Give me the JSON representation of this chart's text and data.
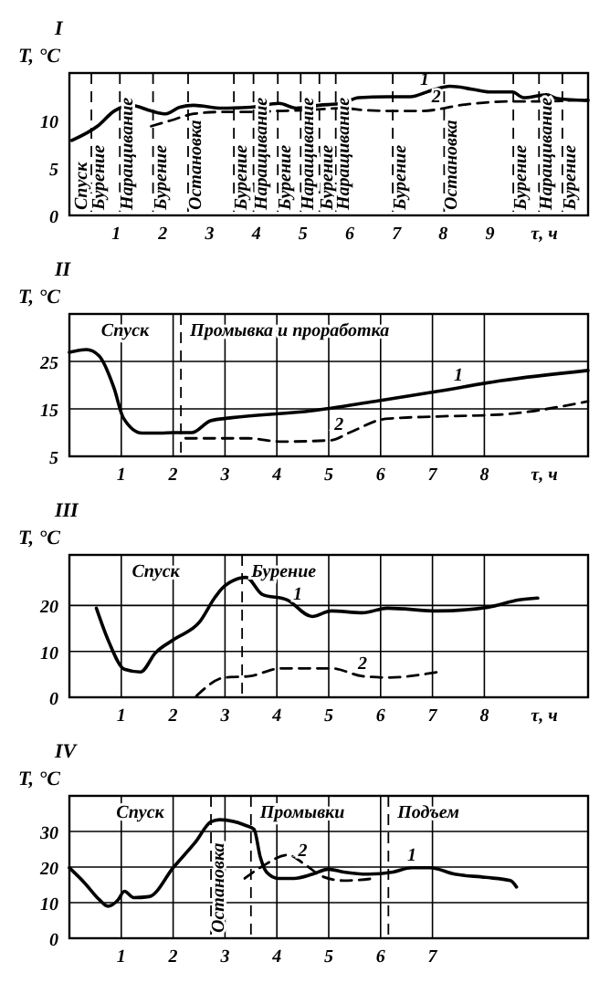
{
  "chart_data": [
    {
      "type": "line",
      "title": "I",
      "ylabel": "T, °C",
      "xlabel": "τ, ч",
      "xlim": [
        0,
        11.1
      ],
      "ylim": [
        0,
        15
      ],
      "xticks": [
        1,
        2,
        3,
        4,
        5,
        6,
        7,
        8,
        9
      ],
      "yticks": [
        0,
        5,
        10
      ],
      "series": [
        {
          "color": "#000000",
          "line_style": "solid",
          "x": [
            0.05,
            0.6,
            0.96,
            1.32,
            1.75,
            2.06,
            2.36,
            2.66,
            3.27,
            3.88,
            4.49,
            4.85,
            5.34,
            5.83,
            6.19,
            6.8,
            7.29,
            7.77,
            8.14,
            8.62,
            8.99,
            9.48,
            9.72,
            10.21,
            10.45,
            11.1
          ],
          "values": [
            7.9,
            9.4,
            11.0,
            11.6,
            11.0,
            10.7,
            11.4,
            11.6,
            11.3,
            11.4,
            11.8,
            11.3,
            11.6,
            11.8,
            12.4,
            12.5,
            12.5,
            13.2,
            13.6,
            13.3,
            13.0,
            13.0,
            12.4,
            12.7,
            12.3,
            12.1
          ]
        },
        {
          "color": "#000000",
          "line_style": "dashed",
          "x": [
            1.75,
            2.17,
            2.66,
            3.27,
            3.88,
            4.49,
            5.1,
            5.83,
            6.31,
            6.92,
            7.53,
            8.5,
            9.36,
            9.97,
            11.1
          ],
          "values": [
            9.4,
            10.0,
            10.7,
            10.9,
            10.9,
            11.0,
            11.1,
            11.3,
            11.1,
            11.0,
            11.0,
            11.7,
            12.0,
            12.0,
            12.2
          ]
        }
      ],
      "ref_lines": [
        {
          "axis": "x",
          "value": 0.47,
          "label": "Бурение",
          "line_style": "dashed"
        },
        {
          "axis": "x",
          "value": 1.08,
          "label": "Наращивание",
          "line_style": "dashed"
        },
        {
          "axis": "x",
          "value": 1.79,
          "label": "Бурение",
          "line_style": "dashed"
        },
        {
          "axis": "x",
          "value": 2.54,
          "label": "Остановка",
          "line_style": "dashed"
        },
        {
          "axis": "x",
          "value": 3.52,
          "label": "Бурение",
          "line_style": "dashed"
        },
        {
          "axis": "x",
          "value": 3.94,
          "label": "Наращивание",
          "line_style": "dashed"
        },
        {
          "axis": "x",
          "value": 4.46,
          "label": "Бурение",
          "line_style": "dashed"
        },
        {
          "axis": "x",
          "value": 4.95,
          "label": "Наращивание",
          "line_style": "dashed"
        },
        {
          "axis": "x",
          "value": 5.35,
          "label": "Бурение",
          "line_style": "dashed"
        },
        {
          "axis": "x",
          "value": 5.7,
          "label": "Наращивание",
          "line_style": "dashed"
        },
        {
          "axis": "x",
          "value": 6.92,
          "label": "Бурение",
          "line_style": "dashed"
        },
        {
          "axis": "x",
          "value": 8.02,
          "label": "Остановка",
          "line_style": "dashed"
        },
        {
          "axis": "x",
          "value": 9.5,
          "label": "Бурение",
          "line_style": "dashed"
        },
        {
          "axis": "x",
          "value": 10.05,
          "label": "Наращивание",
          "line_style": "dashed"
        },
        {
          "axis": "x",
          "value": 10.55,
          "label": "Бурение",
          "line_style": "dashed"
        }
      ],
      "annotations": [
        "Спуск",
        {
          "text": "1",
          "x": 7.6,
          "y": 13.0
        },
        {
          "text": "2",
          "x": 7.85,
          "y": 11.2
        }
      ]
    },
    {
      "type": "line",
      "title": "II",
      "ylabel": "T, °C",
      "xlabel": "τ, ч",
      "xlim": [
        0,
        10
      ],
      "ylim": [
        5,
        35
      ],
      "xticks": [
        1,
        2,
        3,
        4,
        5,
        6,
        7,
        8
      ],
      "yticks": [
        5,
        15,
        25
      ],
      "grid": true,
      "series": [
        {
          "color": "#000000",
          "line_style": "solid",
          "x": [
            0,
            0.33,
            0.57,
            0.86,
            1.04,
            1.4,
            1.76,
            2.0,
            2.36,
            2.72,
            3.1,
            4.68,
            5.89,
            7.1,
            8.3,
            10
          ],
          "values": [
            26.9,
            27.5,
            26.2,
            19.4,
            13.1,
            9.9,
            9.9,
            10,
            10,
            12.5,
            13.1,
            14.6,
            16.6,
            18.7,
            20.9,
            23.1
          ]
        },
        {
          "color": "#000000",
          "line_style": "dashed",
          "x": [
            2.24,
            3.45,
            4.08,
            5.05,
            5.4,
            6.1,
            7.1,
            8.3,
            10
          ],
          "values": [
            8.8,
            8.8,
            8.1,
            8.4,
            10,
            12.9,
            13.4,
            13.8,
            16.6
          ]
        }
      ],
      "ref_lines": [
        {
          "axis": "x",
          "value": 2.15,
          "label": "Промывка и проработка",
          "line_style": "dashed"
        }
      ],
      "annotations": [
        "Спуск",
        {
          "text": "1",
          "x": 7.5,
          "y": 19.4
        },
        {
          "text": "2",
          "x": 5.2,
          "y": 9.1
        }
      ]
    },
    {
      "type": "line",
      "title": "III",
      "ylabel": "T, °C",
      "xlabel": "τ, ч",
      "xlim": [
        0,
        10
      ],
      "ylim": [
        0,
        31
      ],
      "xticks": [
        1,
        2,
        3,
        4,
        5,
        6,
        7,
        8
      ],
      "yticks": [
        0,
        10,
        20
      ],
      "grid": true,
      "series": [
        {
          "color": "#000000",
          "line_style": "solid",
          "x": [
            0.52,
            0.76,
            1.06,
            1.37,
            1.66,
            2.03,
            2.51,
            2.81,
            2.99,
            3.41,
            3.72,
            4.2,
            4.68,
            5.05,
            5.65,
            6.13,
            7.1,
            8.07,
            8.67,
            9.03
          ],
          "values": [
            19.4,
            12.1,
            6.1,
            5.5,
            9.7,
            12.7,
            16.4,
            21.8,
            24.2,
            26.1,
            22.4,
            21.2,
            17.6,
            18.8,
            18.4,
            19.4,
            18.8,
            19.6,
            21.2,
            21.6
          ]
        },
        {
          "color": "#000000",
          "line_style": "dashed",
          "x": [
            2.45,
            2.99,
            3.47,
            4.08,
            5.05,
            5.65,
            6.13,
            7.1
          ],
          "values": [
            0.3,
            4.3,
            4.6,
            6.3,
            6.3,
            4.6,
            4.3,
            5.5
          ]
        }
      ],
      "ref_lines": [
        {
          "axis": "x",
          "value": 3.33,
          "label": "Бурение",
          "line_style": "dashed"
        }
      ],
      "annotations": [
        "Спуск",
        {
          "text": "1",
          "x": 4.4,
          "y": 19.7
        },
        {
          "text": "2",
          "x": 5.65,
          "y": 4.6
        }
      ]
    },
    {
      "type": "line",
      "title": "IV",
      "ylabel": "T, °C",
      "xlim": [
        0,
        10
      ],
      "ylim": [
        0,
        40
      ],
      "xticks": [
        1,
        2,
        3,
        4,
        5,
        6,
        7
      ],
      "yticks": [
        0,
        10,
        20,
        30
      ],
      "grid": true,
      "series": [
        {
          "color": "#000000",
          "line_style": "solid",
          "x": [
            0,
            0.29,
            0.58,
            0.74,
            0.94,
            1.06,
            1.24,
            1.54,
            2.01,
            2.43,
            2.73,
            2.9,
            3.38,
            3.56,
            3.68,
            3.8,
            4.03,
            4.33,
            4.69,
            4.99,
            5.29,
            5.76,
            6.24,
            6.6,
            6.95,
            7.43,
            8.02,
            8.5,
            8.62
          ],
          "values": [
            19.8,
            15.6,
            10.8,
            9.0,
            10.8,
            13.2,
            11.4,
            11.7,
            20.0,
            27.0,
            32.7,
            33.3,
            31.8,
            30.6,
            22.8,
            18.6,
            16.8,
            16.8,
            18.0,
            19.4,
            18.6,
            18.0,
            18.6,
            19.8,
            19.8,
            18.0,
            17.1,
            16.2,
            14.4
          ]
        },
        {
          "color": "#000000",
          "line_style": "dashed",
          "x": [
            3.38,
            3.74,
            4.21,
            4.57,
            4.87,
            5.29,
            5.88
          ],
          "values": [
            16.8,
            20.4,
            23.4,
            20.4,
            17.4,
            16.2,
            16.8
          ]
        }
      ],
      "ref_lines": [
        {
          "axis": "x",
          "value": 2.73,
          "label": "Остановка",
          "line_style": "dashed"
        },
        {
          "axis": "x",
          "value": 3.5,
          "label": "Промывки",
          "line_style": "dashed"
        },
        {
          "axis": "x",
          "value": 6.15,
          "label": "Подъем",
          "line_style": "dashed"
        }
      ],
      "annotations": [
        "Спуск",
        {
          "text": "1",
          "x": 6.6,
          "y": 19.8
        },
        {
          "text": "2",
          "x": 4.5,
          "y": 21.0
        }
      ]
    }
  ]
}
